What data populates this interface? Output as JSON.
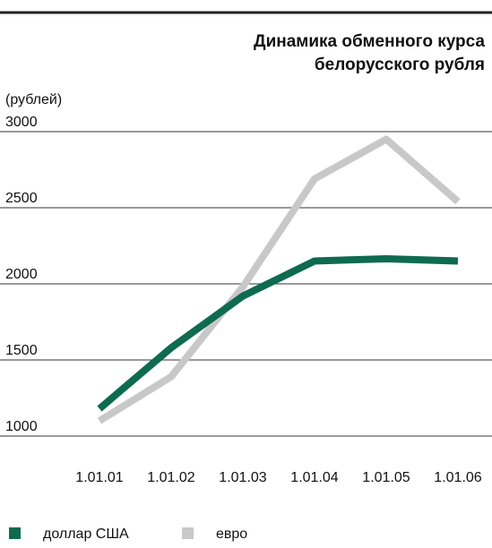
{
  "chart_data": {
    "type": "line",
    "title": "Динамика обменного курса белорусского рубля",
    "y_label": "(рублей)",
    "categories": [
      "1.01.01",
      "1.01.02",
      "1.01.03",
      "1.01.04",
      "1.01.05",
      "1.01.06"
    ],
    "series": [
      {
        "name": "доллар США",
        "color": "#0e6b4f",
        "values": [
          1180,
          1580,
          1920,
          2150,
          2165,
          2150
        ]
      },
      {
        "name": "евро",
        "color": "#c8c8c8",
        "values": [
          1100,
          1390,
          1980,
          2690,
          2950,
          2540
        ]
      }
    ],
    "ylim": [
      1000,
      3000
    ],
    "yticks": [
      1000,
      1500,
      2000,
      2500,
      3000
    ],
    "grid": true
  }
}
